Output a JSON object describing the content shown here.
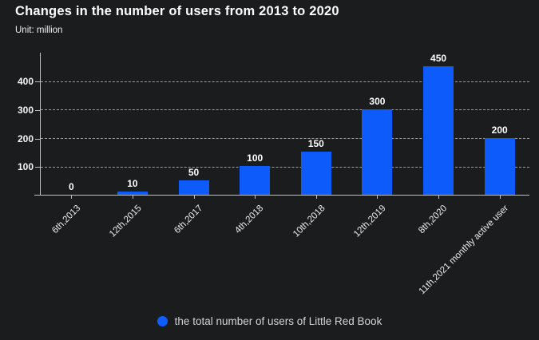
{
  "header": {
    "title": "Changes in the number of users from 2013 to 2020",
    "subtitle": "Unit: million"
  },
  "legend": {
    "label": "the total number of users of Little Red Book",
    "marker_color": "#0f5efb"
  },
  "chart_data": {
    "type": "bar",
    "title": "Changes in the number of users from 2013 to 2020",
    "subtitle": "Unit: million",
    "categories": [
      "6th,2013",
      "12th,2015",
      "6th,2017",
      "4th,2018",
      "10th,2018",
      "12th,2019",
      "8th,2020",
      "11th,2021 monthly active user"
    ],
    "values": [
      0,
      10,
      50,
      100,
      150,
      300,
      450,
      200
    ],
    "value_labels": [
      "0",
      "10",
      "50",
      "100",
      "150",
      "300",
      "450",
      "200"
    ],
    "series_name": "the total number of users of Little Red Book",
    "xlabel": "",
    "ylabel": "Unit: million",
    "ylim": [
      0,
      500
    ],
    "yticks": [
      100,
      200,
      300,
      400
    ],
    "grid": true,
    "grid_style": "dashed",
    "legend_position": "bottom",
    "bar_color": "#0c5bfa",
    "background_color": "#1b1c1d",
    "text_color": "#ffffff"
  }
}
